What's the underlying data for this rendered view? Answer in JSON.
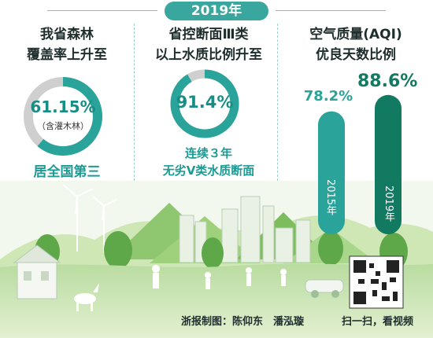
{
  "header": {
    "year_label": "2019年"
  },
  "forest": {
    "title_line1": "我省森林",
    "title_line2": "覆盖率上升至",
    "value_label": "61.15%",
    "note": "（含灌木林）",
    "rank": "居全国第三",
    "ring_color": "#2aa39a"
  },
  "water": {
    "title_line1": "省控断面Ⅲ类",
    "title_line2": "以上水质比例升至",
    "value_label": "91.4%",
    "footnote_line1": "连续３年",
    "footnote_line2": "无劣Ⅴ类水质断面",
    "ring_color": "#2aa39a"
  },
  "air": {
    "title_line1": "空气质量(AQI)",
    "title_line2": "优良天数比例"
  },
  "chart_data": [
    {
      "type": "pie",
      "name": "我省森林覆盖率",
      "values": [
        61.15
      ],
      "max": 100,
      "labels": [
        "61.15%"
      ]
    },
    {
      "type": "pie",
      "name": "省控断面Ⅲ类以上水质比例",
      "values": [
        91.4
      ],
      "max": 100,
      "labels": [
        "91.4%"
      ]
    },
    {
      "type": "bar",
      "title": "空气质量(AQI)优良天数比例",
      "categories": [
        "2015年",
        "2019年"
      ],
      "values": [
        78.2,
        88.6
      ],
      "value_labels": [
        "78.2%",
        "88.6%"
      ],
      "colors": [
        "#2aa39a",
        "#117a60"
      ],
      "ylim": [
        0,
        100
      ]
    }
  ],
  "footer": {
    "credit": "浙报制图：陈仰东　潘泓璇",
    "scan_label": "扫一扫，看视频"
  }
}
